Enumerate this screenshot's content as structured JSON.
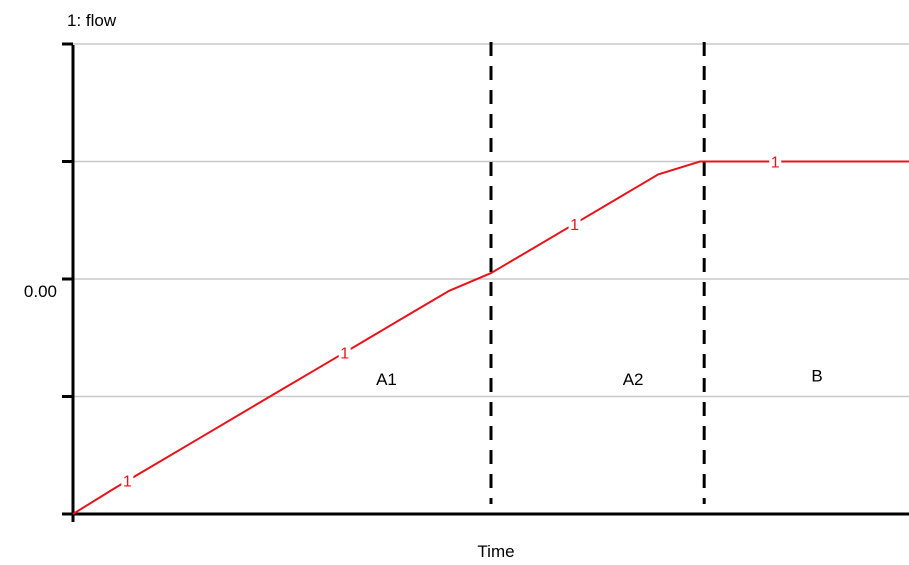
{
  "chart_data": {
    "type": "line",
    "title": "1:  flow",
    "xlabel": "Time",
    "ylabel": "",
    "y_tick_labels": [
      {
        "value": 0,
        "text": "0.00"
      }
    ],
    "grid": true,
    "x_range": [
      0,
      100
    ],
    "y_range": [
      -2,
      2
    ],
    "series": [
      {
        "marker": "1",
        "color": "#e8141b",
        "x": [
          0,
          5,
          10,
          15,
          20,
          25,
          30,
          35,
          40,
          45,
          50,
          55,
          60,
          65,
          70,
          75,
          76,
          80,
          85,
          90,
          95,
          100
        ],
        "y": [
          -2.0,
          -1.78,
          -1.57,
          -1.36,
          -1.15,
          -0.94,
          -0.73,
          -0.52,
          -0.31,
          -0.1,
          0.05,
          0.26,
          0.47,
          0.68,
          0.89,
          1.0,
          1.0,
          1.0,
          1.0,
          1.0,
          1.0,
          1.0
        ],
        "marker_x": [
          6.5,
          32.5,
          60,
          84
        ]
      }
    ],
    "dividers": [
      50,
      75.5
    ],
    "regions": [
      {
        "label": "A1",
        "x": 37.5,
        "y": -0.85
      },
      {
        "label": "A2",
        "x": 67,
        "y": -0.85
      },
      {
        "label": "B",
        "x": 89,
        "y": -0.82
      }
    ]
  }
}
